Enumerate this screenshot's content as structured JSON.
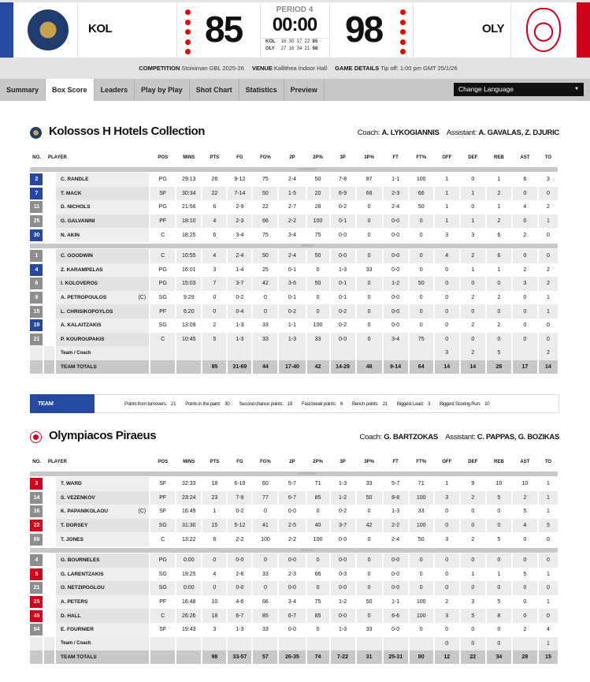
{
  "colors": {
    "home": "#2548a0",
    "away": "#d0021b",
    "bench_badge": "#8e8e8e"
  },
  "header": {
    "home_abbr": "KOL",
    "away_abbr": "OLY",
    "home_score": "85",
    "away_score": "98",
    "period": "PERIOD 4",
    "clock": "00:00",
    "quarters": [
      {
        "team": "KOL",
        "q": [
          "16",
          "30",
          "17",
          "22"
        ],
        "total": "85"
      },
      {
        "team": "OLY",
        "q": [
          "27",
          "16",
          "34",
          "21"
        ],
        "total": "98"
      }
    ]
  },
  "info": {
    "competition_label": "COMPETITION",
    "competition": "Stoiximan GBL 2025-26",
    "venue_label": "VENUE",
    "venue": "Kallithea Indoor Hall",
    "details_label": "GAME DETAILS",
    "details": "Tip off: 1:00 pm GMT 25/1/26"
  },
  "tabs": [
    "Summary",
    "Box Score",
    "Leaders",
    "Play by Play",
    "Shot Chart",
    "Statistics",
    "Preview"
  ],
  "active_tab": "Box Score",
  "language_select": "Change Language",
  "columns": [
    "NO.",
    "PLAYER",
    "POS",
    "MINS",
    "PTS",
    "FG",
    "FG%",
    "2P",
    "2P%",
    "3P",
    "3P%",
    "FT",
    "FT%",
    "OFF",
    "DEF",
    "REB",
    "AST",
    "TO"
  ],
  "section_labels": {
    "starters": "STARTERS",
    "bench": "BENCH"
  },
  "home": {
    "name": "Kolossos H Hotels Collection",
    "coach_label": "Coach:",
    "coach": "A. LYKOGIANNIS",
    "assistant_label": "Assistant:",
    "assistant": "A. GAVALAS, Z. DJURIC",
    "starters": [
      {
        "no": "2",
        "on": true,
        "name": "C. RANDLE",
        "s": [
          "PG",
          "29:13",
          "26",
          "9-12",
          "75",
          "2-4",
          "50",
          "7-8",
          "87",
          "1-1",
          "100",
          "1",
          "0",
          "1",
          "6",
          "3"
        ]
      },
      {
        "no": "7",
        "on": true,
        "name": "T. MACK",
        "s": [
          "SF",
          "30:34",
          "22",
          "7-14",
          "50",
          "1-5",
          "20",
          "6-9",
          "66",
          "2-3",
          "66",
          "1",
          "1",
          "2",
          "0",
          "0"
        ]
      },
      {
        "no": "11",
        "on": false,
        "name": "D. NICHOLS",
        "s": [
          "PG",
          "21:56",
          "6",
          "2-9",
          "22",
          "2-7",
          "28",
          "0-2",
          "0",
          "2-4",
          "50",
          "1",
          "0",
          "1",
          "4",
          "2"
        ]
      },
      {
        "no": "25",
        "on": false,
        "name": "G. GALVANINI",
        "s": [
          "PF",
          "18:10",
          "4",
          "2-3",
          "66",
          "2-2",
          "100",
          "0-1",
          "0",
          "0-0",
          "0",
          "1",
          "1",
          "2",
          "0",
          "1"
        ]
      },
      {
        "no": "30",
        "on": true,
        "name": "N. AKIN",
        "s": [
          "C",
          "18:25",
          "6",
          "3-4",
          "75",
          "3-4",
          "75",
          "0-0",
          "0",
          "0-0",
          "0",
          "3",
          "3",
          "6",
          "2",
          "0"
        ]
      }
    ],
    "bench": [
      {
        "no": "1",
        "on": false,
        "name": "C. GOODWIN",
        "s": [
          "C",
          "10:55",
          "4",
          "2-4",
          "50",
          "2-4",
          "50",
          "0-0",
          "0",
          "0-0",
          "0",
          "4",
          "2",
          "6",
          "0",
          "0"
        ]
      },
      {
        "no": "4",
        "on": true,
        "name": "Z. KARAMPELAS",
        "s": [
          "PG",
          "16:01",
          "3",
          "1-4",
          "25",
          "0-1",
          "0",
          "1-3",
          "33",
          "0-0",
          "0",
          "0",
          "1",
          "1",
          "2",
          "2"
        ]
      },
      {
        "no": "6",
        "on": false,
        "name": "I. KOLOVEROS",
        "s": [
          "PG",
          "15:03",
          "7",
          "3-7",
          "42",
          "3-6",
          "50",
          "0-1",
          "0",
          "1-2",
          "50",
          "0",
          "0",
          "0",
          "3",
          "2"
        ]
      },
      {
        "no": "9",
        "on": false,
        "name": "A. PETROPOULOS",
        "captain": "(C)",
        "s": [
          "SG",
          "9:29",
          "0",
          "0-2",
          "0",
          "0-1",
          "0",
          "0-1",
          "0",
          "0-0",
          "0",
          "0",
          "2",
          "2",
          "0",
          "1"
        ]
      },
      {
        "no": "15",
        "on": false,
        "name": "L. CHRISIKOPOYLOS",
        "s": [
          "PF",
          "6:20",
          "0",
          "0-4",
          "0",
          "0-2",
          "0",
          "0-2",
          "0",
          "0-0",
          "0",
          "0",
          "0",
          "0",
          "0",
          "1"
        ]
      },
      {
        "no": "19",
        "on": true,
        "name": "A. KALAITZAKIS",
        "s": [
          "SG",
          "13:09",
          "2",
          "1-3",
          "33",
          "1-1",
          "100",
          "0-2",
          "0",
          "0-0",
          "0",
          "0",
          "2",
          "2",
          "0",
          "0"
        ]
      },
      {
        "no": "21",
        "on": false,
        "name": "P. KOUROUPAKIS",
        "s": [
          "C",
          "10:45",
          "5",
          "1-3",
          "33",
          "1-3",
          "33",
          "0-0",
          "0",
          "3-4",
          "75",
          "0",
          "0",
          "0",
          "0",
          "0"
        ]
      }
    ],
    "team_coach": {
      "name": "Team / Coach",
      "s": [
        "",
        "",
        "",
        "",
        "",
        "",
        "",
        "",
        "",
        "",
        "",
        "3",
        "2",
        "5",
        "",
        "2"
      ]
    },
    "totals": {
      "name": "TEAM TOTALS",
      "s": [
        "",
        "",
        "85",
        "31-69",
        "44",
        "17-40",
        "42",
        "14-29",
        "48",
        "9-14",
        "64",
        "14",
        "14",
        "28",
        "17",
        "14"
      ]
    }
  },
  "team_stats": {
    "label": "TEAM STATISTICS:",
    "items": [
      {
        "label": "Points from turnovers:",
        "value": "21"
      },
      {
        "label": "Points in the paint:",
        "value": "30"
      },
      {
        "label": "Second chance points:",
        "value": "19"
      },
      {
        "label": "Fast break points:",
        "value": "6"
      },
      {
        "label": "Bench points:",
        "value": "21"
      },
      {
        "label": "Biggest Lead:",
        "value": "3"
      },
      {
        "label": "Biggest Scoring Run:",
        "value": "10"
      }
    ]
  },
  "away": {
    "name": "Olympiacos Piraeus",
    "coach_label": "Coach:",
    "coach": "G. BARTZOKAS",
    "assistant_label": "Assistant:",
    "assistant": "C. PAPPAS, G. BOZIKAS",
    "starters": [
      {
        "no": "3",
        "on": true,
        "name": "T. WARD",
        "s": [
          "SF",
          "32:33",
          "18",
          "6-10",
          "60",
          "5-7",
          "71",
          "1-3",
          "33",
          "5-7",
          "71",
          "1",
          "9",
          "10",
          "10",
          "1"
        ]
      },
      {
        "no": "14",
        "on": false,
        "name": "S. VEZENKOV",
        "s": [
          "PF",
          "23:24",
          "23",
          "7-9",
          "77",
          "6-7",
          "85",
          "1-2",
          "50",
          "8-8",
          "100",
          "3",
          "2",
          "5",
          "2",
          "1"
        ]
      },
      {
        "no": "16",
        "on": false,
        "name": "K. PAPANIKOLAOU",
        "captain": "(C)",
        "s": [
          "SF",
          "16:49",
          "1",
          "0-2",
          "0",
          "0-0",
          "0",
          "0-2",
          "0",
          "1-3",
          "33",
          "0",
          "0",
          "0",
          "5",
          "1"
        ]
      },
      {
        "no": "22",
        "on": true,
        "name": "T. DORSEY",
        "s": [
          "SG",
          "31:30",
          "15",
          "5-12",
          "41",
          "2-5",
          "40",
          "3-7",
          "42",
          "2-2",
          "100",
          "0",
          "0",
          "0",
          "4",
          "5"
        ]
      },
      {
        "no": "88",
        "on": false,
        "name": "T. JONES",
        "s": [
          "C",
          "13:22",
          "6",
          "2-2",
          "100",
          "2-2",
          "100",
          "0-0",
          "0",
          "2-4",
          "50",
          "3",
          "2",
          "5",
          "0",
          "0"
        ]
      }
    ],
    "bench": [
      {
        "no": "4",
        "on": false,
        "name": "G. BOURNELES",
        "s": [
          "PG",
          "0:00",
          "0",
          "0-0",
          "0",
          "0-0",
          "0",
          "0-0",
          "0",
          "0-0",
          "0",
          "0",
          "0",
          "0",
          "0",
          "0"
        ]
      },
      {
        "no": "5",
        "on": true,
        "name": "G. LARENTZAKIS",
        "s": [
          "SG",
          "19:25",
          "4",
          "2-6",
          "33",
          "2-3",
          "66",
          "0-3",
          "0",
          "0-0",
          "0",
          "0",
          "1",
          "1",
          "5",
          "1"
        ]
      },
      {
        "no": "21",
        "on": false,
        "name": "O. NETZIPOGLOU",
        "s": [
          "SG",
          "0:00",
          "0",
          "0-0",
          "0",
          "0-0",
          "0",
          "0-0",
          "0",
          "0-0",
          "0",
          "0",
          "0",
          "0",
          "0",
          "0"
        ]
      },
      {
        "no": "25",
        "on": true,
        "name": "A. PETERS",
        "s": [
          "PF",
          "16:48",
          "10",
          "4-6",
          "66",
          "3-4",
          "75",
          "1-2",
          "50",
          "1-1",
          "100",
          "2",
          "3",
          "5",
          "0",
          "1"
        ]
      },
      {
        "no": "45",
        "on": true,
        "name": "D. HALL",
        "s": [
          "C",
          "26:26",
          "18",
          "6-7",
          "85",
          "6-7",
          "85",
          "0-0",
          "0",
          "6-6",
          "100",
          "3",
          "5",
          "8",
          "0",
          "0"
        ]
      },
      {
        "no": "94",
        "on": false,
        "name": "E. FOURNIER",
        "s": [
          "SF",
          "19:43",
          "3",
          "1-3",
          "33",
          "0-0",
          "0",
          "1-3",
          "33",
          "0-0",
          "0",
          "0",
          "0",
          "0",
          "2",
          "4"
        ]
      }
    ],
    "team_coach": {
      "name": "Team / Coach",
      "s": [
        "",
        "",
        "",
        "",
        "",
        "",
        "",
        "",
        "",
        "",
        "",
        "0",
        "0",
        "0",
        "",
        "1"
      ]
    },
    "totals": {
      "name": "TEAM TOTALS",
      "s": [
        "",
        "",
        "98",
        "33-57",
        "57",
        "26-35",
        "74",
        "7-22",
        "31",
        "25-31",
        "80",
        "12",
        "22",
        "34",
        "28",
        "15"
      ]
    }
  }
}
